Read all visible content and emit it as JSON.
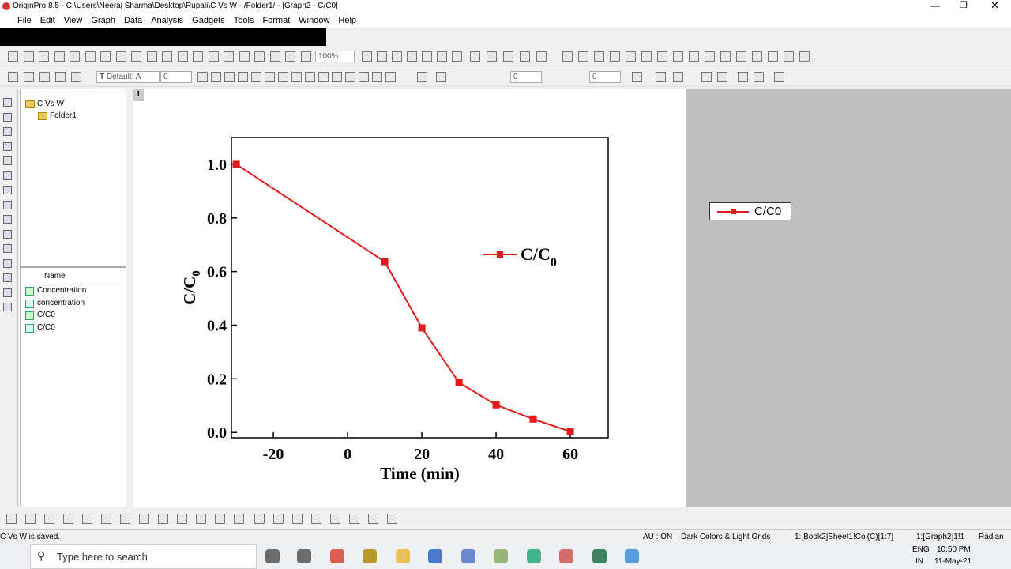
{
  "window": {
    "title": "OriginPro 8.5 - C:\\Users\\Neeraj Sharma\\Desktop\\Rupali\\C Vs W - /Folder1/ - [Graph2 - C/C0]"
  },
  "menu": [
    "File",
    "Edit",
    "View",
    "Graph",
    "Data",
    "Analysis",
    "Gadgets",
    "Tools",
    "Format",
    "Window",
    "Help"
  ],
  "toolbar": {
    "zoom": "100%",
    "font": "Default: A",
    "font_size": "0",
    "line_width": "0",
    "pattern_size": "0"
  },
  "layer_tab": "1",
  "project_explorer": {
    "tree": [
      "C Vs W",
      "Folder1"
    ],
    "column_header": "Name",
    "items": [
      "Concentration",
      "concentration",
      "C/C0",
      "C/C0"
    ]
  },
  "chart_data": {
    "type": "line",
    "x_label": "Time (min)",
    "y_label": {
      "text": "C/C",
      "subscript": "0"
    },
    "legend_label": {
      "text": "C/C",
      "subscript": "0"
    },
    "x": [
      -30,
      10,
      20,
      30,
      40,
      50,
      60
    ],
    "series": [
      {
        "name": "C/C0",
        "color": "#e31a1c",
        "values": [
          1.0,
          0.637,
          0.39,
          0.186,
          0.103,
          0.05,
          0.003
        ]
      }
    ],
    "xlim": [
      -31.3,
      70.2
    ],
    "ylim": [
      -0.02,
      1.1
    ],
    "xticks": [
      -20,
      0,
      20,
      40,
      60
    ],
    "yticks": [
      {
        "value": 0,
        "label": "0.0"
      },
      0.2,
      0.4,
      0.6,
      0.8,
      {
        "value": 1,
        "label": "1.0"
      }
    ]
  },
  "status_bar": [
    "C Vs W is saved.",
    "AU : ON",
    "Dark Colors & Light Grids",
    "1:[Book2]Sheet1!Col(C)[1:7]",
    "1:[Graph2]1!1",
    "Radian"
  ],
  "taskbar": {
    "search": "Type here to search",
    "lang": "ENG",
    "region": "IN",
    "time": "10:50 PM",
    "date": "11-May-21"
  }
}
